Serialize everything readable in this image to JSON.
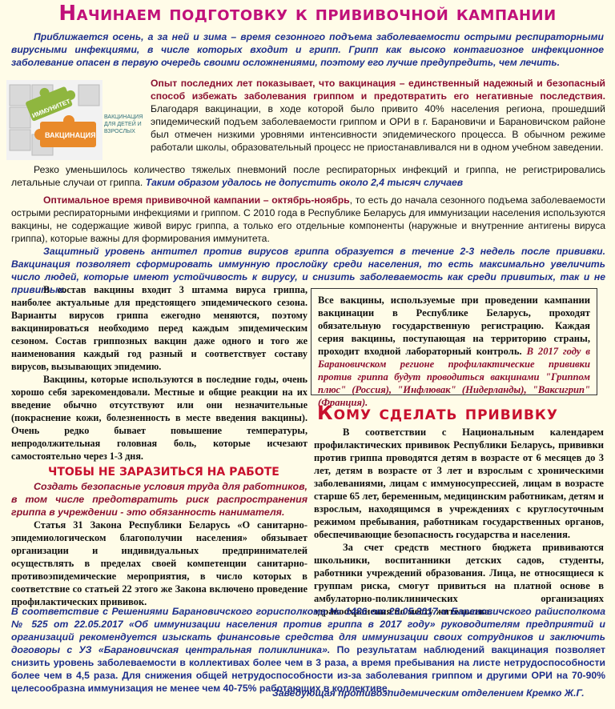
{
  "title": "Начинаем подготовку к прививочной кампании",
  "intro": "Приближается осень, а за ней и зима – время сезонного подъема заболеваемости острыми респираторными вирусными инфекциями, в числе которых входит и грипп. Грипп как высоко контагиозное инфекционное заболевание опасен в первую очередь своими осложнениями, поэтому его лучше предупредить, чем лечить.",
  "puzzle": {
    "p1": "ИММУНИТЕТ",
    "p2": "ВАКЦИНАЦИЯ",
    "caption": "ВАКЦИНАЦИЯ ДЛЯ ДЕТЕЙ И ВЗРОСЛЫХ"
  },
  "block1_bold": "Опыт последних лет показывает, что вакцинация – единственный надежный и безопасный способ избежать заболевания гриппом и предотвратить его негативные последствия.",
  "block1_text": " Благодаря вакцинации, в ходе которой было привито 40% населения региона, прошедший эпидемический подъем заболеваемости гриппом и ОРИ в г. Барановичи и Барановичском районе был отмечен низкими уровнями интенсивности эпидемического процесса. В обычном режиме работали школы, образовательный процесс не приостанавливался ни в одном учебном заведении.",
  "block1b_text": "Резко уменьшилось количество тяжелых пневмоний после респираторных инфекций и гриппа, не регистрировались летальные случаи от гриппа.",
  "block1b_it": " Таким образом удалось не допустить около 2,4 тысяч случаев",
  "block2_bold": "Оптимальное время прививочной кампании – октябрь-ноябрь",
  "block2_text": ", то есть до начала сезонного подъема заболеваемости острыми респираторными инфекциями и гриппом. С 2010 года в Республике Беларусь для иммунизации населения используются вакцины, не содержащие живой вирус гриппа, а только его отдельные компоненты (наружные и внутренние антигены вируса гриппа), которые важны для формирования иммунитета.",
  "block3": "Защитный уровень антител против вирусов гриппа образуется в течение 2-3 недель после прививки. Вакцинация позволяет сформировать иммунную прослойку среди населения, то есть максимально увеличить число людей, которые имеют устойчивость к вирусу, и снизить заболеваемость как среди привитых, так и не привитых.",
  "left_p1": "В состав вакцины входит 3 штамма вируса гриппа, наиболее актуальные для предстоящего эпидемического сезона. Варианты вирусов гриппа ежегодно меняются, поэтому вакцинироваться необходимо перед каждым эпидемическим сезоном. Состав гриппозных вакцин даже одного и того же наименования каждый год разный и соответствует составу вирусов, вызывающих эпидемию.",
  "left_p2": "Вакцины, которые используются в последние годы, очень хорошо себя зарекомендовали. Местные и общие реакции на их введение обычно отсутствуют или они незначительные (покраснение кожи, болезненность в месте введения вакцины). Очень редко бывает повышение температуры, непродолжительная головная боль, которые исчезают самостоятельно через 1-3 дня.",
  "box_text": "Все вакцины, используемые при проведении кампании вакцинации в Республике Беларусь, проходят обязательную государственную регистрацию. Каждая серия вакцины, поступающая на территорию страны, проходит входной лабораторный контроль.",
  "box_hi": " В 2017 году в Барановичском регионе профилактические прививки против гриппа будут проводиться вакцинами \"Гриппом плюс\" (Россия), \"Инфлювак\" (Нидерланды), \"Ваксигрип\" (Франция).",
  "kom_title": "Кому сделать прививку",
  "right_p1": "В соответствии с Национальным календарем профилактических прививок Республики Беларусь, прививки против гриппа проводятся детям в возрасте от 6 месяцев до 3 лет, детям в возрасте от 3 лет и взрослым с хроническими заболеваниями, лицам с иммуносупрессией, лицам в возрасте старше 65 лет, беременным, медицинским работникам, детям и взрослым, находящимся в учреждениях с круглосуточным режимом пребывания, работникам государственных органов, обеспечивающие безопасность государства и населения.",
  "right_p2": "За счет средств местного бюджета прививаются школьники, воспитанники детских садов, студенты, работники учреждений образования. Лица, не относящиеся к группам риска, смогут привиться на платной основе в амбулаторно-поликлинических организациях здравоохранения по месту жительства.",
  "chtob_title": "ЧТОБЫ НЕ ЗАРАЗИТЬСЯ НА РАБОТЕ",
  "chtob_it": "Создать безопасные условия труда для работников, в том числе предотвратить риск распространения гриппа в учреждении - это обязанность нанимателя.",
  "chtob_text": "Статья 31 Закона Республики Беларусь «О санитарно-эпидемиологическом благополучии населения» обязывает организации и индивидуальных предпринимателей осуществлять в пределах своей компетенции санитарно-противоэпидемические мероприятия, в число которых в соответствие со статьей 22 этого же Закона включено проведение профилактических прививок.",
  "bottom_it": "В соответствие с Решениями Барановичского горисполкома № 1486 от 23.05.2017 и Барановичского райисполкома № 525 от 22.05.2017 «Об иммунизации населения против гриппа в 2017 году» руководителям предприятий и организаций рекомендуется изыскать финансовые средства для иммунизации своих сотрудников и заключить договоры с УЗ «Барановичская центральная поликлиника».",
  "bottom_text": " По результатам наблюдений вакцинация позволяет снизить уровень заболеваемости в коллективах более чем в 3 раза, а время пребывания на листе нетрудоспособности более чем в 4,5 раза. Для снижения общей нетрудоспособности из-за заболевания гриппом и другими ОРИ на 70-90% целесообразна иммунизация не менее чем 40-75% работающих в коллективе.",
  "signature": "Заведующая противоэпидемическим отделением Кремко Ж.Г."
}
